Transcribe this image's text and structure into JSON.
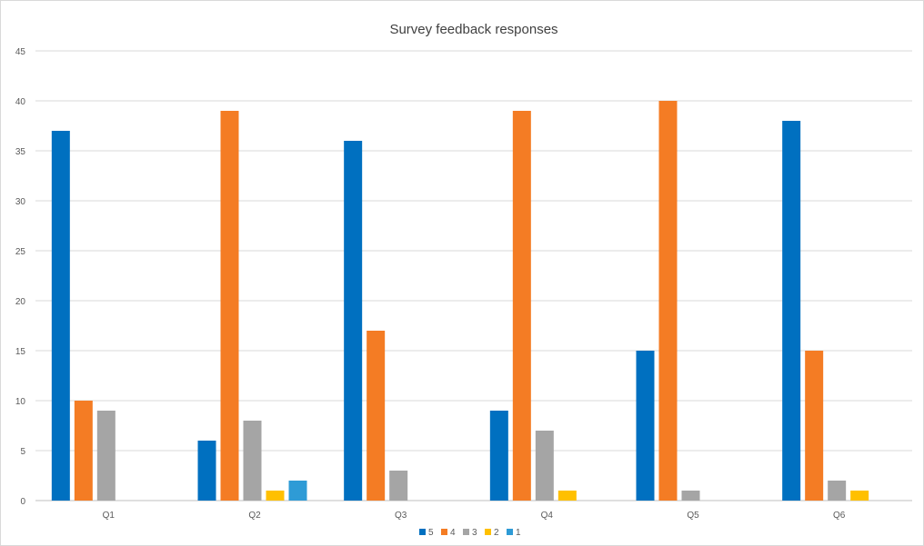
{
  "chart_data": {
    "type": "bar",
    "title": "Survey feedback responses",
    "xlabel": "",
    "ylabel": "",
    "categories": [
      "Q1",
      "Q2",
      "Q3",
      "Q4",
      "Q5",
      "Q6"
    ],
    "series": [
      {
        "name": "5",
        "color": "#0070C0",
        "values": [
          37,
          6,
          36,
          9,
          15,
          38
        ]
      },
      {
        "name": "4",
        "color": "#F47C24",
        "values": [
          10,
          39,
          17,
          39,
          40,
          15
        ]
      },
      {
        "name": "3",
        "color": "#A5A5A5",
        "values": [
          9,
          8,
          3,
          7,
          1,
          2
        ]
      },
      {
        "name": "2",
        "color": "#FFC000",
        "values": [
          0,
          1,
          0,
          1,
          0,
          1
        ]
      },
      {
        "name": "1",
        "color": "#2E9BD6",
        "values": [
          0,
          2,
          0,
          0,
          0,
          0
        ]
      }
    ],
    "ylim": [
      0,
      45
    ],
    "yticks": [
      0,
      5,
      10,
      15,
      20,
      25,
      30,
      35,
      40,
      45
    ],
    "grid": true,
    "legend_position": "bottom"
  }
}
